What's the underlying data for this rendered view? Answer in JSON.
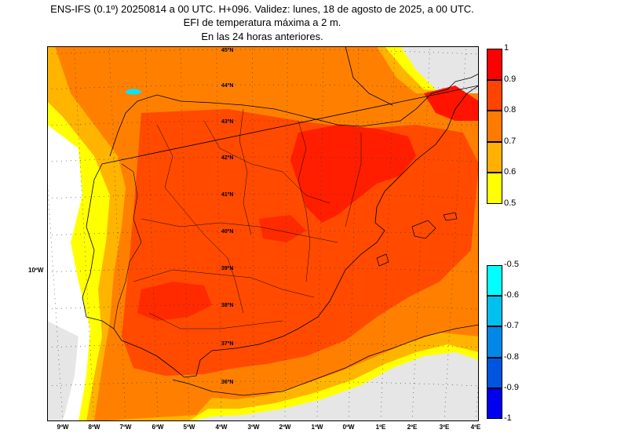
{
  "title": {
    "line1": "ENS-IFS (0.1º) 20250814 a 00 UTC. H+096. Validez: lunes, 18 de agosto de 2025, a 00 UTC.",
    "line2": "EFI de temperatura máxima a 2 m.",
    "line3": "En las 24 horas anteriores."
  },
  "map": {
    "lon_labels": [
      "9ºW",
      "8ºW",
      "7ºW",
      "6ºW",
      "5ºW",
      "4ºW",
      "3ºW",
      "2ºW",
      "1ºW",
      "0ºW",
      "1ºE",
      "2ºE",
      "3ºE",
      "4ºE"
    ],
    "lat_labels": [
      "45ºN",
      "44ºN",
      "43ºN",
      "42ºN",
      "41ºN",
      "40ºN",
      "39ºN",
      "38ºN",
      "37ºN",
      "36ºN"
    ],
    "side_label": "10ºW",
    "colors": {
      "land_low": "#e6e6e6",
      "sea": "#ffffff",
      "yellow": "#ffff00",
      "orange_light": "#ffb400",
      "orange": "#ff7a00",
      "orange_dark": "#ff4a00",
      "red": "#ff1400"
    }
  },
  "legend_positive": {
    "labels": [
      "1",
      "0.9",
      "0.8",
      "0.7",
      "0.6",
      "0.5"
    ],
    "colors": [
      "#ff0000",
      "#ff4400",
      "#ff7a00",
      "#ffb000",
      "#ffff00"
    ]
  },
  "legend_negative": {
    "labels": [
      "-0.5",
      "-0.6",
      "-0.7",
      "-0.8",
      "-0.9",
      "-1"
    ],
    "colors": [
      "#00ffff",
      "#00c0ee",
      "#0088e8",
      "#0055e0",
      "#0000ee"
    ]
  }
}
